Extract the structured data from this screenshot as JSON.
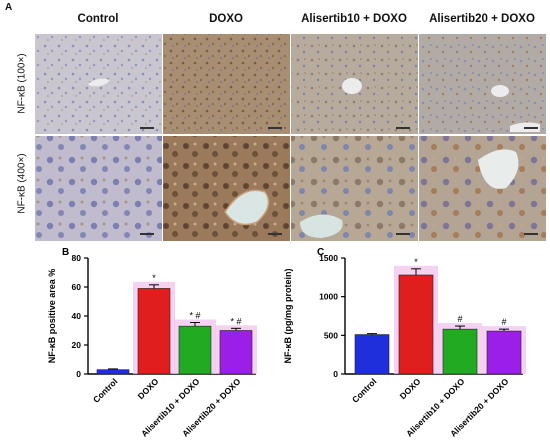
{
  "panel_a": {
    "letter": "A",
    "columns": [
      "Control",
      "DOXO",
      "Alisertib10 + DOXO",
      "Alisertib20 + DOXO"
    ],
    "rows": [
      "NF-κB (100×)",
      "NF-κB (400×)"
    ]
  },
  "chart_data": [
    {
      "panel": "B",
      "type": "bar",
      "ylabel": "NF-κB positive area %",
      "ylim": [
        0,
        80
      ],
      "yticks": [
        0,
        20,
        40,
        60,
        80
      ],
      "categories": [
        "Control",
        "DOXO",
        "Alisertib10 + DOXO",
        "Alisertib20 + DOXO"
      ],
      "values": [
        3,
        59,
        33,
        30
      ],
      "errors": [
        0.5,
        2.5,
        2.5,
        1.5
      ],
      "annotations": [
        "",
        "*",
        "* #",
        "* #"
      ],
      "colors": [
        "#1f2fdc",
        "#e01e1e",
        "#22aa22",
        "#9b1fe8"
      ]
    },
    {
      "panel": "C",
      "type": "bar",
      "ylabel": "NF-κB (pg/mg protein)",
      "ylim": [
        0,
        1500
      ],
      "yticks": [
        0,
        500,
        1000,
        1500
      ],
      "categories": [
        "Control",
        "DOXO",
        "Alisertib10 + DOXO",
        "Alisertib20 + DOXO"
      ],
      "values": [
        510,
        1280,
        580,
        555
      ],
      "errors": [
        12,
        80,
        40,
        25
      ],
      "annotations": [
        "",
        "*",
        "#",
        "#"
      ],
      "colors": [
        "#1f2fdc",
        "#e01e1e",
        "#22aa22",
        "#9b1fe8"
      ]
    }
  ]
}
